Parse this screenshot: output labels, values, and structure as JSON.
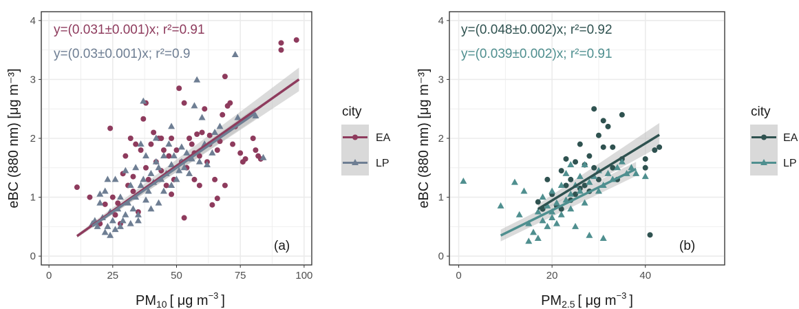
{
  "colors": {
    "a_EA": "#8e3b5d",
    "a_LP": "#6e7e93",
    "b_EA": "#2f5250",
    "b_LP": "#4f8f8f",
    "band": "#bdbdbd",
    "grid": "#ebebeb",
    "border": "#333333",
    "legend_key_bg": "#d9d9d9"
  },
  "chart_data": [
    {
      "type": "scatter",
      "panel_label": "(a)",
      "xlabel_main": "PM",
      "xlabel_sub": "10",
      "xlabel_rest": "[ μg  m",
      "xlabel_exp": "−3",
      "xlabel_close": "]",
      "ylabel": "eBC (880 nm) [μg m⁻³]",
      "xlim": [
        -3,
        103
      ],
      "ylim": [
        -0.15,
        4.15
      ],
      "xticks": [
        0,
        25,
        50,
        75,
        100
      ],
      "yticks": [
        0,
        1,
        2,
        3,
        4
      ],
      "grid": true,
      "legend": {
        "title": "city",
        "placement": "right",
        "entries": [
          "EA",
          "LP"
        ]
      },
      "annotations": [
        "y=(0.031±0.001)x; r²=0.91",
        "y=(0.03±0.001)x; r²=0.9"
      ],
      "series": [
        {
          "name": "EA",
          "marker": "circle",
          "fit": {
            "x": [
              11,
              98
            ],
            "y": [
              0.34,
              3.0
            ]
          },
          "band_halfwidth": [
            0.03,
            0.2
          ],
          "points": [
            [
              11,
              1.17
            ],
            [
              16,
              1.0
            ],
            [
              20,
              0.55
            ],
            [
              22,
              0.88
            ],
            [
              24,
              2.17
            ],
            [
              25,
              1.0
            ],
            [
              26,
              0.7
            ],
            [
              27,
              0.9
            ],
            [
              28,
              0.55
            ],
            [
              29,
              1.4
            ],
            [
              30,
              1.7
            ],
            [
              31,
              1.2
            ],
            [
              32,
              2.0
            ],
            [
              33,
              1.1
            ],
            [
              34,
              1.9
            ],
            [
              35,
              0.75
            ],
            [
              36,
              1.8
            ],
            [
              37,
              2.33
            ],
            [
              38,
              2.6
            ],
            [
              38,
              1.5
            ],
            [
              39,
              1.3
            ],
            [
              40,
              1.9
            ],
            [
              41,
              2.1
            ],
            [
              42,
              1.6
            ],
            [
              43,
              2.0
            ],
            [
              44,
              1.45
            ],
            [
              45,
              1.8
            ],
            [
              46,
              1.2
            ],
            [
              47,
              1.7
            ],
            [
              48,
              2.0
            ],
            [
              49,
              1.3
            ],
            [
              50,
              1.8
            ],
            [
              51,
              2.85
            ],
            [
              52,
              1.6
            ],
            [
              53,
              0.65
            ],
            [
              54,
              1.5
            ],
            [
              55,
              2.0
            ],
            [
              56,
              1.9
            ],
            [
              57,
              1.3
            ],
            [
              58,
              2.07
            ],
            [
              59,
              1.7
            ],
            [
              60,
              2.1
            ],
            [
              61,
              2.5
            ],
            [
              62,
              1.6
            ],
            [
              63,
              1.9
            ],
            [
              64,
              0.87
            ],
            [
              65,
              1.3
            ],
            [
              66,
              1.8
            ],
            [
              67,
              1.95
            ],
            [
              68,
              2.4
            ],
            [
              69,
              1.2
            ],
            [
              70,
              2.55
            ],
            [
              71,
              2.6
            ],
            [
              72,
              1.9
            ],
            [
              73,
              2.2
            ],
            [
              75,
              1.75
            ],
            [
              76,
              1.6
            ],
            [
              77,
              1.65
            ],
            [
              80,
              2.0
            ],
            [
              81,
              1.8
            ],
            [
              82,
              1.7
            ],
            [
              83,
              1.65
            ],
            [
              91,
              3.5
            ],
            [
              91,
              3.62
            ],
            [
              97,
              3.67
            ],
            [
              69,
              3.05
            ],
            [
              53,
              2.6
            ],
            [
              44,
              2.0
            ],
            [
              33,
              1.35
            ],
            [
              59,
              1.2
            ],
            [
              66,
              0.98
            ],
            [
              48,
              1.05
            ],
            [
              57,
              1.75
            ],
            [
              63,
              2.05
            ]
          ]
        },
        {
          "name": "LP",
          "marker": "triangle",
          "fit": {
            "x": [
              17,
              81
            ],
            "y": [
              0.51,
              2.43
            ]
          },
          "band_halfwidth": [
            0.03,
            0.1
          ],
          "points": [
            [
              17,
              0.55
            ],
            [
              18,
              0.6
            ],
            [
              19,
              0.5
            ],
            [
              20,
              0.9
            ],
            [
              21,
              0.65
            ],
            [
              22,
              0.4
            ],
            [
              22,
              1.1
            ],
            [
              23,
              0.5
            ],
            [
              24,
              0.35
            ],
            [
              24,
              0.75
            ],
            [
              25,
              0.6
            ],
            [
              26,
              0.45
            ],
            [
              26,
              1.3
            ],
            [
              27,
              0.8
            ],
            [
              28,
              0.5
            ],
            [
              28,
              1.0
            ],
            [
              29,
              0.6
            ],
            [
              30,
              0.7
            ],
            [
              30,
              1.45
            ],
            [
              31,
              0.9
            ],
            [
              32,
              0.55
            ],
            [
              32,
              1.2
            ],
            [
              33,
              0.8
            ],
            [
              34,
              1.0
            ],
            [
              34,
              1.5
            ],
            [
              35,
              0.7
            ],
            [
              36,
              1.2
            ],
            [
              36,
              1.9
            ],
            [
              37,
              2.63
            ],
            [
              37,
              1.3
            ],
            [
              38,
              0.95
            ],
            [
              38,
              1.7
            ],
            [
              39,
              1.1
            ],
            [
              40,
              1.4
            ],
            [
              40,
              0.8
            ],
            [
              41,
              1.25
            ],
            [
              42,
              1.6
            ],
            [
              43,
              0.9
            ],
            [
              43,
              1.5
            ],
            [
              44,
              1.3
            ],
            [
              45,
              1.7
            ],
            [
              45,
              1.1
            ],
            [
              46,
              1.4
            ],
            [
              47,
              1.9
            ],
            [
              48,
              1.2
            ],
            [
              48,
              1.55
            ],
            [
              49,
              1.7
            ],
            [
              50,
              1.3
            ],
            [
              51,
              1.45
            ],
            [
              52,
              1.6
            ],
            [
              52,
              1.85
            ],
            [
              53,
              1.5
            ],
            [
              54,
              1.75
            ],
            [
              55,
              1.4
            ],
            [
              56,
              1.65
            ],
            [
              57,
              2.55
            ],
            [
              58,
              2.99
            ],
            [
              59,
              1.6
            ],
            [
              60,
              2.35
            ],
            [
              61,
              1.9
            ],
            [
              62,
              1.55
            ],
            [
              64,
              1.75
            ],
            [
              65,
              2.1
            ],
            [
              67,
              2.2
            ],
            [
              73,
              3.42
            ],
            [
              74,
              2.35
            ],
            [
              81,
              2.38
            ],
            [
              84,
              1.67
            ],
            [
              20,
              1.05
            ],
            [
              23,
              1.3
            ],
            [
              35,
              0.6
            ],
            [
              42,
              2.0
            ],
            [
              48,
              2.2
            ]
          ]
        }
      ]
    },
    {
      "type": "scatter",
      "panel_label": "(b)",
      "xlabel_main": "PM",
      "xlabel_sub": "2.5",
      "xlabel_rest": "[ μg  m",
      "xlabel_exp": "−3",
      "xlabel_close": "]",
      "ylabel": "eBC (880 nm) [μg m⁻³]",
      "xlim": [
        -2,
        57
      ],
      "ylim": [
        -0.15,
        4.15
      ],
      "xticks": [
        0,
        20,
        40
      ],
      "yticks": [
        0,
        1,
        2,
        3,
        4
      ],
      "grid": true,
      "legend": {
        "title": "city",
        "placement": "right",
        "entries": [
          "EA",
          "LP"
        ]
      },
      "annotations": [
        "y=(0.048±0.002)x; r²=0.92",
        "y=(0.039±0.002)x; r²=0.91"
      ],
      "series": [
        {
          "name": "EA",
          "marker": "circle",
          "fit": {
            "x": [
              17,
              43
            ],
            "y": [
              0.8,
              2.06
            ]
          },
          "band_halfwidth": [
            0.08,
            0.2
          ],
          "points": [
            [
              17,
              0.92
            ],
            [
              18,
              0.8
            ],
            [
              19,
              1.3
            ],
            [
              20,
              1.05
            ],
            [
              21,
              0.85
            ],
            [
              22,
              1.45
            ],
            [
              23,
              1.65
            ],
            [
              24,
              1.3
            ],
            [
              25,
              1.05
            ],
            [
              25,
              1.6
            ],
            [
              26,
              1.9
            ],
            [
              27,
              1.2
            ],
            [
              27,
              1.55
            ],
            [
              28,
              1.7
            ],
            [
              29,
              2.5
            ],
            [
              29,
              1.5
            ],
            [
              30,
              1.3
            ],
            [
              30,
              2.05
            ],
            [
              31,
              1.85
            ],
            [
              31,
              2.3
            ],
            [
              32,
              2.2
            ],
            [
              33,
              1.85
            ],
            [
              33,
              1.5
            ],
            [
              34,
              1.3
            ],
            [
              35,
              2.4
            ],
            [
              35,
              1.65
            ],
            [
              40,
              1.5
            ],
            [
              40,
              1.65
            ],
            [
              41,
              0.36
            ],
            [
              42,
              1.8
            ],
            [
              43,
              1.85
            ],
            [
              22,
              0.8
            ],
            [
              24,
              0.95
            ],
            [
              26,
              1.15
            ],
            [
              28,
              1.1
            ],
            [
              23,
              1.2
            ]
          ]
        },
        {
          "name": "LP",
          "marker": "triangle",
          "fit": {
            "x": [
              9,
              38
            ],
            "y": [
              0.35,
              1.48
            ]
          },
          "band_halfwidth": [
            0.1,
            0.12
          ],
          "points": [
            [
              1,
              1.27
            ],
            [
              9,
              0.85
            ],
            [
              12,
              1.25
            ],
            [
              13,
              0.7
            ],
            [
              14,
              1.1
            ],
            [
              15,
              0.25
            ],
            [
              15,
              0.55
            ],
            [
              16,
              0.4
            ],
            [
              17,
              0.3
            ],
            [
              17,
              0.75
            ],
            [
              18,
              0.6
            ],
            [
              18,
              1.0
            ],
            [
              19,
              0.5
            ],
            [
              19,
              0.85
            ],
            [
              20,
              0.65
            ],
            [
              20,
              1.1
            ],
            [
              21,
              0.55
            ],
            [
              21,
              0.9
            ],
            [
              22,
              1.2
            ],
            [
              22,
              0.7
            ],
            [
              23,
              0.95
            ],
            [
              23,
              1.4
            ],
            [
              24,
              1.05
            ],
            [
              24,
              0.8
            ],
            [
              25,
              1.2
            ],
            [
              25,
              0.5
            ],
            [
              26,
              1.1
            ],
            [
              26,
              1.35
            ],
            [
              27,
              0.9
            ],
            [
              27,
              1.55
            ],
            [
              28,
              1.25
            ],
            [
              28,
              0.35
            ],
            [
              29,
              1.35
            ],
            [
              30,
              1.1
            ],
            [
              30,
              1.45
            ],
            [
              31,
              1.2
            ],
            [
              31,
              0.3
            ],
            [
              32,
              1.4
            ],
            [
              33,
              1.3
            ],
            [
              34,
              1.5
            ],
            [
              35,
              1.6
            ],
            [
              36,
              1.4
            ],
            [
              37,
              1.5
            ],
            [
              38,
              1.4
            ],
            [
              40,
              1.35
            ],
            [
              24,
              1.55
            ],
            [
              20,
              0.75
            ]
          ]
        }
      ]
    }
  ]
}
